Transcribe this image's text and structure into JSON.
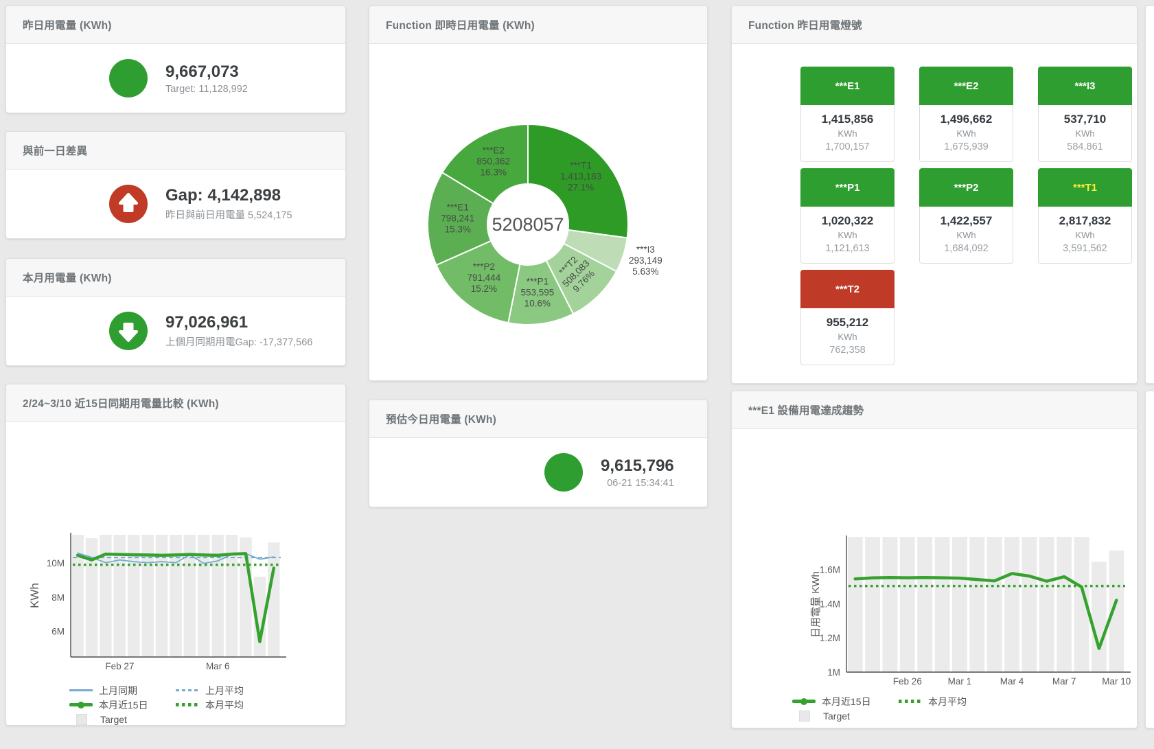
{
  "colors": {
    "green": "#2f9e30",
    "red": "#c03a26",
    "blue": "#74a9d1",
    "line_green": "#36a22e",
    "bar_gray": "#ebebeb",
    "tile_red": "#bf3b28",
    "tile_label_yellow": "#ffeb3b"
  },
  "cards": {
    "yesterday": {
      "title": "昨日用電量 (KWh)",
      "value": "9,667,073",
      "sub": "Target: 11,128,992"
    },
    "gap": {
      "title": "與前一日差異",
      "value": "Gap: 4,142,898",
      "sub": "昨日與前日用電量 5,524,175"
    },
    "month": {
      "title": "本月用電量 (KWh)",
      "value": "97,026,961",
      "sub": "上個月同期用電Gap: -17,377,566"
    },
    "compare": {
      "title": "2/24~3/10 近15日同期用電量比較 (KWh)"
    },
    "donut": {
      "title": "Function 即時日用電量 (KWh)"
    },
    "estimate": {
      "title": "預估今日用電量 (KWh)",
      "value": "9,615,796",
      "sub": "06-21 15:34:41"
    },
    "tiles": {
      "title": "Function 昨日用電燈號"
    },
    "trend": {
      "title": "***E1 設備用電達成趨勢"
    }
  },
  "tiles": [
    {
      "label": "***E1",
      "value": "1,415,856",
      "unit": "KWh",
      "target": "1,700,157",
      "header_color": "#2f9e30",
      "label_color": "#ffffff"
    },
    {
      "label": "***E2",
      "value": "1,496,662",
      "unit": "KWh",
      "target": "1,675,939",
      "header_color": "#2f9e30",
      "label_color": "#ffffff"
    },
    {
      "label": "***I3",
      "value": "537,710",
      "unit": "KWh",
      "target": "584,861",
      "header_color": "#2f9e30",
      "label_color": "#ffffff"
    },
    {
      "label": "***P1",
      "value": "1,020,322",
      "unit": "KWh",
      "target": "1,121,613",
      "header_color": "#2f9e30",
      "label_color": "#ffffff"
    },
    {
      "label": "***P2",
      "value": "1,422,557",
      "unit": "KWh",
      "target": "1,684,092",
      "header_color": "#2f9e30",
      "label_color": "#ffffff"
    },
    {
      "label": "***T1",
      "value": "2,817,832",
      "unit": "KWh",
      "target": "3,591,562",
      "header_color": "#2f9e30",
      "label_color": "#ffeb3b"
    },
    {
      "label": "***T2",
      "value": "955,212",
      "unit": "KWh",
      "target": "762,358",
      "header_color": "#bf3b28",
      "label_color": "#ffffff"
    }
  ],
  "chart_data": [
    {
      "type": "pie",
      "title": "Function 即時日用電量 (KWh)",
      "center_total": "5208057",
      "legend_position": "none",
      "slices": [
        {
          "name": "***T1",
          "value": 1413183,
          "label_value": "1,413,183",
          "pct": "27.1%",
          "p": 27.1,
          "color": "#2d9b26"
        },
        {
          "name": "***I3",
          "value": 293149,
          "label_value": "293,149",
          "pct": "5.63%",
          "p": 5.63,
          "color": "#bedcb6",
          "outside": true
        },
        {
          "name": "***T2",
          "value": 508083,
          "label_value": "508,083",
          "pct": "9.76%",
          "p": 9.76,
          "color": "#a3d29a",
          "rotate": -45
        },
        {
          "name": "***P1",
          "value": 553595,
          "label_value": "553,595",
          "pct": "10.6%",
          "p": 10.6,
          "color": "#8bc982"
        },
        {
          "name": "***P2",
          "value": 791444,
          "label_value": "791,444",
          "pct": "15.2%",
          "p": 15.2,
          "color": "#72bc68"
        },
        {
          "name": "***E1",
          "value": 798241,
          "label_value": "798,241",
          "pct": "15.3%",
          "p": 15.3,
          "color": "#5baf52"
        },
        {
          "name": "***E2",
          "value": 850362,
          "label_value": "850,362",
          "pct": "16.3%",
          "p": 16.3,
          "color": "#47a83e"
        }
      ]
    },
    {
      "type": "line",
      "title": "2/24~3/10 近15日同期用電量比較 (KWh)",
      "ylabel": "KWh",
      "unit_scale": "M = millions KWh",
      "ylim": [
        4.5,
        11.69
      ],
      "grid": false,
      "n": 15,
      "x_dates": "Feb 24 to Mar 10",
      "yticks": [
        {
          "v": 6,
          "label": "6M"
        },
        {
          "v": 8,
          "label": "8M"
        },
        {
          "v": 10,
          "label": "10M"
        }
      ],
      "x_ticks": [
        {
          "i": 3,
          "label": "Feb 27"
        },
        {
          "i": 10,
          "label": "Mar 6"
        }
      ],
      "target_bars": {
        "name": "Target",
        "color": "#ebebeb",
        "values": [
          11.65,
          11.45,
          11.65,
          11.65,
          11.65,
          11.65,
          11.65,
          11.65,
          11.65,
          11.65,
          11.65,
          11.65,
          11.5,
          9.2,
          11.2
        ]
      },
      "series": [
        {
          "name": "上月同期",
          "color": "#74a9d1",
          "width": 1.8,
          "values": [
            10.58,
            10.33,
            10.02,
            10.18,
            10.08,
            10.02,
            10.08,
            10.02,
            10.48,
            9.98,
            10.12,
            10.5,
            10.55,
            10.22,
            10.36
          ]
        },
        {
          "name": "本月近15日",
          "color": "#36a22e",
          "width": 4.5,
          "values": [
            10.45,
            10.18,
            10.52,
            10.5,
            10.48,
            10.47,
            10.45,
            10.47,
            10.5,
            10.47,
            10.45,
            10.52,
            10.55,
            5.4,
            9.7
          ]
        }
      ],
      "const_lines": [
        {
          "name": "上月平均",
          "color": "#74a9d1",
          "style": "dashed",
          "value": 10.32
        },
        {
          "name": "本月平均",
          "color": "#36a22e",
          "style": "dotted",
          "value": 9.9
        }
      ]
    },
    {
      "type": "line",
      "title": "***E1 設備用電達成趨勢",
      "ylabel": "日用電量 KWh",
      "unit_scale": "M = millions KWh",
      "ylim": [
        1.0,
        1.79
      ],
      "grid": false,
      "n": 16,
      "x_dates": "Feb 23 to Mar 10",
      "yticks": [
        {
          "v": 1.0,
          "label": "1M"
        },
        {
          "v": 1.2,
          "label": "1.2M"
        },
        {
          "v": 1.4,
          "label": "1.4M"
        },
        {
          "v": 1.6,
          "label": "1.6M"
        }
      ],
      "x_ticks": [
        {
          "i": 3,
          "label": "Feb 26"
        },
        {
          "i": 6,
          "label": "Mar 1"
        },
        {
          "i": 9,
          "label": "Mar 4"
        },
        {
          "i": 12,
          "label": "Mar 7"
        },
        {
          "i": 15,
          "label": "Mar 10"
        }
      ],
      "target_bars": {
        "name": "Target",
        "color": "#ebebeb",
        "values": [
          1.79,
          1.79,
          1.79,
          1.79,
          1.79,
          1.79,
          1.79,
          1.79,
          1.79,
          1.79,
          1.79,
          1.79,
          1.79,
          1.79,
          1.645,
          1.71
        ]
      },
      "series": [
        {
          "name": "本月近15日",
          "color": "#36a22e",
          "width": 4.5,
          "values": [
            1.544,
            1.55,
            1.552,
            1.551,
            1.552,
            1.551,
            1.549,
            1.541,
            1.533,
            1.576,
            1.561,
            1.531,
            1.557,
            1.497,
            1.138,
            1.42
          ]
        }
      ],
      "const_lines": [
        {
          "name": "本月平均",
          "color": "#36a22e",
          "style": "dotted",
          "value": 1.503
        }
      ]
    }
  ]
}
